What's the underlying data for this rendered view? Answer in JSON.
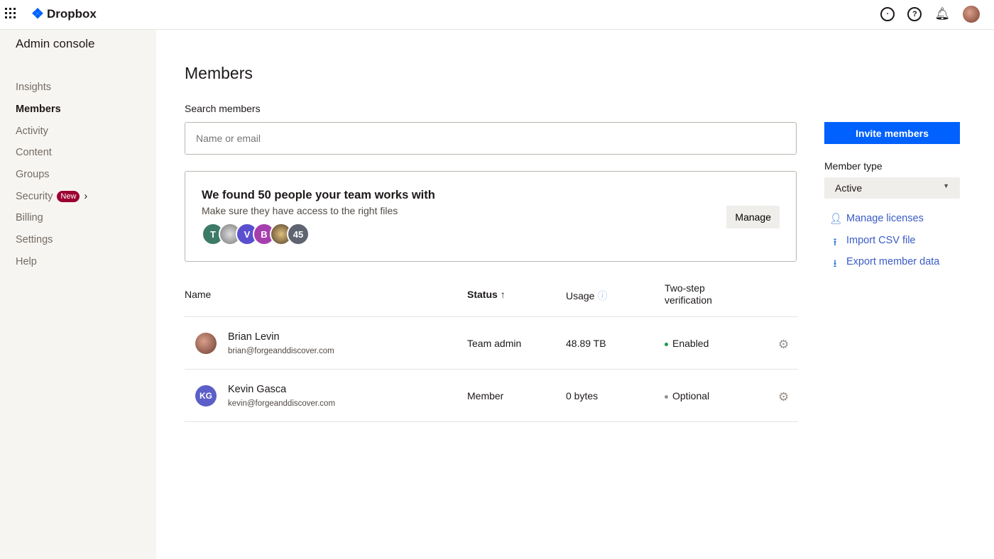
{
  "brand": {
    "name": "Dropbox",
    "accent": "#0061fe"
  },
  "topbar": {
    "icons": [
      "grid-icon",
      "clock-icon",
      "help-icon",
      "bell-icon",
      "avatar"
    ]
  },
  "sidebar": {
    "title": "Admin console",
    "items": [
      {
        "label": "Insights"
      },
      {
        "label": "Members",
        "active": true
      },
      {
        "label": "Activity"
      },
      {
        "label": "Content"
      },
      {
        "label": "Groups"
      },
      {
        "label": "Security",
        "badge": "New"
      },
      {
        "label": "Billing"
      },
      {
        "label": "Settings"
      },
      {
        "label": "Help"
      }
    ]
  },
  "main": {
    "title": "Members",
    "search_label": "Search members",
    "search_placeholder": "Name or email",
    "card": {
      "title": "We found 50 people your team works with",
      "subtitle": "Make sure they have access to the right files",
      "avatars": [
        "T",
        "",
        "V",
        "B",
        "",
        "45"
      ],
      "button": "Manage"
    },
    "table": {
      "headers": {
        "name": "Name",
        "status": "Status",
        "usage": "Usage",
        "twostep": "Two-step verification"
      },
      "rows": [
        {
          "name": "Brian Levin",
          "email": "brian@forgeanddiscover.com",
          "initials": "",
          "status": "Team admin",
          "usage": "48.89 TB",
          "twostep": "Enabled",
          "dot": "#1a9b4b"
        },
        {
          "name": "Kevin Gasca",
          "email": "kevin@forgeanddiscover.com",
          "initials": "KG",
          "status": "Member",
          "usage": "0 bytes",
          "twostep": "Optional",
          "dot": "#9a928a"
        }
      ]
    }
  },
  "right": {
    "invite": "Invite members",
    "member_type_label": "Member type",
    "member_type": "Active",
    "links": [
      {
        "label": "Manage licenses",
        "icon": "add-user-icon"
      },
      {
        "label": "Import CSV file",
        "icon": "upload-icon"
      },
      {
        "label": "Export member data",
        "icon": "download-icon"
      }
    ]
  }
}
